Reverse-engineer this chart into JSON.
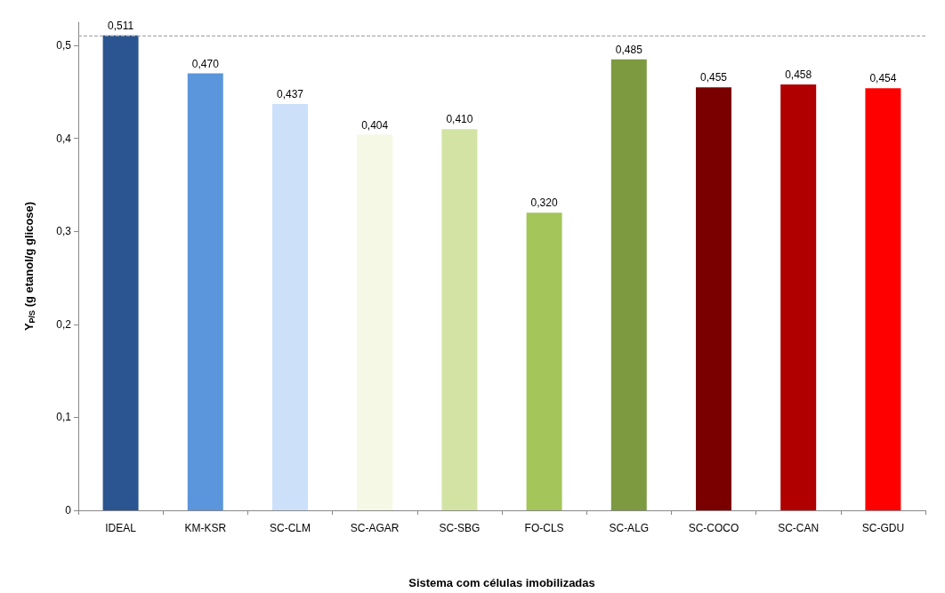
{
  "chart_data": {
    "type": "bar",
    "categories": [
      "IDEAL",
      "KM-KSR",
      "SC-CLM",
      "SC-AGAR",
      "SC-SBG",
      "FO-CLS",
      "SC-ALG",
      "SC-COCO",
      "SC-CAN",
      "SC-GDU"
    ],
    "values": [
      0.511,
      0.47,
      0.437,
      0.404,
      0.41,
      0.32,
      0.485,
      0.455,
      0.458,
      0.454
    ],
    "value_labels": [
      "0,511",
      "0,470",
      "0,437",
      "0,404",
      "0,410",
      "0,320",
      "0,485",
      "0,455",
      "0,458",
      "0,454"
    ],
    "colors": [
      "#2a5590",
      "#5b96dc",
      "#cce0fa",
      "#f4f8e4",
      "#d3e3a4",
      "#a3c55a",
      "#7d9a40",
      "#7a0000",
      "#b00000",
      "#ff0000"
    ],
    "xlabel": "Sistema com células imobilizadas",
    "ylabel": "Y$_{P/S}$ (g etanol/g glicose)",
    "ylim": [
      0,
      0.525
    ],
    "yticks": [
      0,
      {
        "value": 0.1,
        "label": "0,1"
      },
      {
        "value": 0.2,
        "label": "0,2"
      },
      {
        "value": 0.3,
        "label": "0,3"
      },
      {
        "value": 0.4,
        "label": "0,4"
      },
      {
        "value": 0.5,
        "label": "0,5"
      }
    ],
    "ref_lines": [
      {
        "axis": "y",
        "value": 0.511,
        "color": "#a0a0a0",
        "line_style": "dashed"
      }
    ],
    "grid": false
  }
}
